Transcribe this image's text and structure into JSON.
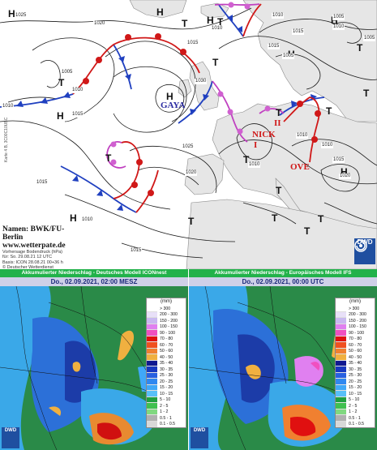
{
  "synop": {
    "highs": [
      "H",
      "H",
      "H",
      "H",
      "H",
      "H",
      "H",
      "H",
      "H"
    ],
    "lows": [
      "T",
      "T",
      "T",
      "T",
      "T",
      "T",
      "T",
      "T",
      "T",
      "T",
      "T",
      "T",
      "T",
      "T",
      "T"
    ],
    "isobars": [
      "1025",
      "1020",
      "1015",
      "1010",
      "1010",
      "1005",
      "1010",
      "1015",
      "1030",
      "1025",
      "1020",
      "1015",
      "1010",
      "1015",
      "1005",
      "1010",
      "1005",
      "1010",
      "1010",
      "1015",
      "1020",
      "1010",
      "1015",
      "1005",
      "1010",
      "1015"
    ],
    "names": {
      "gaya": "GAYA",
      "nick": "NICK",
      "ove": "OVE",
      "roman_ii": "II",
      "roman_i": "I"
    },
    "credit": {
      "line1": "Namen: BWK/FU-Berlin",
      "line2": "www.wetterpate.de",
      "line3": "Vorhersage Bodendruck (hPa)",
      "line4": "für: So. 29.08.21 12 UTC",
      "line5": "Basis: ICON 28.08.21 00+36 h",
      "line6": "© Deutscher Wetterdienst"
    },
    "side_text": "Karte 4 B, 3C00C10UBC",
    "dwd": "DWD"
  },
  "panels": [
    {
      "title": "Akkumulierter Niederschlag - Deutsches Modell ICONnest",
      "date": "Do., 02.09.2021, 02:00 MESZ",
      "dwd": "DWD"
    },
    {
      "title": "Akkumulierter Niederschlag - Europäisches Modell IFS",
      "date": "Do., 02.09.2021, 00:00 UTC",
      "dwd": "DWD"
    }
  ],
  "legend": {
    "unit": "(mm)",
    "bins": [
      {
        "label": "> 300",
        "color": "#ffffff"
      },
      {
        "label": "200 - 300",
        "color": "#e8e0f8"
      },
      {
        "label": "150 - 200",
        "color": "#c8b8f0"
      },
      {
        "label": "100 - 150",
        "color": "#e080f0"
      },
      {
        "label": "90 - 100",
        "color": "#f050c0"
      },
      {
        "label": "70 - 80",
        "color": "#e01010"
      },
      {
        "label": "60 - 70",
        "color": "#f05020"
      },
      {
        "label": "50 - 60",
        "color": "#f08030"
      },
      {
        "label": "40 - 50",
        "color": "#f0b040"
      },
      {
        "label": "35 - 40",
        "color": "#101890"
      },
      {
        "label": "30 - 35",
        "color": "#1838c0"
      },
      {
        "label": "25 - 30",
        "color": "#2860e0"
      },
      {
        "label": "20 - 25",
        "color": "#3088f0"
      },
      {
        "label": "15 - 20",
        "color": "#40a8f8"
      },
      {
        "label": "10 - 15",
        "color": "#58c0f8"
      },
      {
        "label": "5 - 10",
        "color": "#20a040"
      },
      {
        "label": "2 - 5",
        "color": "#40c050"
      },
      {
        "label": "1 - 2",
        "color": "#80d880"
      },
      {
        "label": "0.5 - 1",
        "color": "#b0b0b0"
      },
      {
        "label": "0.1 - 0.5",
        "color": "#d8d8d8"
      }
    ]
  }
}
